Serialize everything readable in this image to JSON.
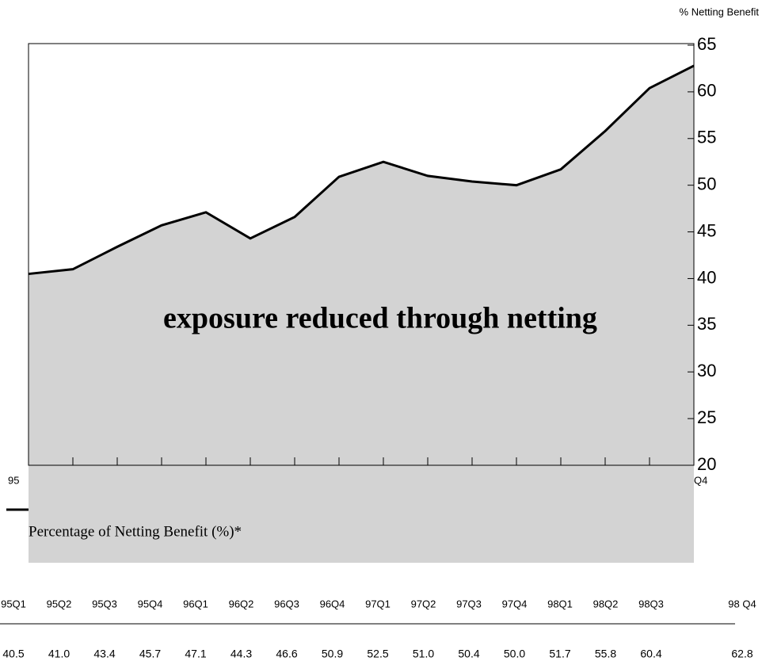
{
  "chart_data": {
    "type": "area",
    "y_axis_label": "% Netting Benefit",
    "annotation": "exposure reduced through netting",
    "x_end_labels": [
      "95",
      "Q4"
    ],
    "categories": [
      "95Q1",
      "95Q2",
      "95Q3",
      "95Q4",
      "96Q1",
      "96Q2",
      "96Q3",
      "96Q4",
      "97Q1",
      "97Q2",
      "97Q3",
      "97Q4",
      "98Q1",
      "98Q2",
      "98Q3",
      "98 Q4"
    ],
    "series": [
      {
        "name": "Percentage of Netting Benefit (%)*",
        "color": "#000000",
        "fill": "#d3d3d3",
        "values": [
          40.5,
          41.0,
          43.4,
          45.7,
          47.1,
          44.3,
          46.6,
          50.9,
          52.5,
          51.0,
          50.4,
          50.0,
          51.7,
          55.8,
          60.4,
          62.8
        ],
        "value_labels": [
          "40.5",
          "41.0",
          "43.4",
          "45.7",
          "47.1",
          "44.3",
          "46.6",
          "50.9",
          "52.5",
          "51.0",
          "50.4",
          "50.0",
          "51.7",
          "55.8",
          "60.4",
          "62.8"
        ]
      }
    ],
    "ylim": [
      20,
      65
    ],
    "yticks": [
      20,
      25,
      30,
      35,
      40,
      45,
      50,
      55,
      60,
      65
    ]
  }
}
